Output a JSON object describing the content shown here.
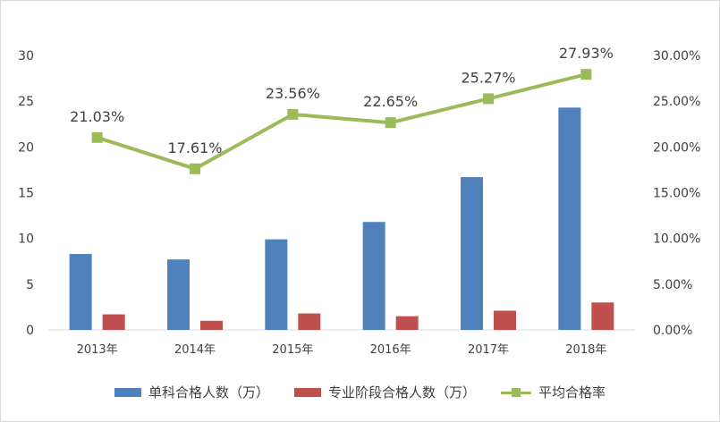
{
  "chart_data": {
    "type": "bar",
    "categories": [
      "2013年",
      "2014年",
      "2015年",
      "2016年",
      "2017年",
      "2018年"
    ],
    "series": [
      {
        "name": "单科合格人数（万）",
        "type": "bar",
        "axis": "left",
        "color": "#4f81bd",
        "values": [
          8.3,
          7.7,
          9.9,
          11.8,
          16.7,
          24.3
        ]
      },
      {
        "name": "专业阶段合格人数（万）",
        "type": "bar",
        "axis": "left",
        "color": "#c0504d",
        "values": [
          1.7,
          1.0,
          1.8,
          1.5,
          2.1,
          3.0
        ]
      },
      {
        "name": "平均合格率",
        "type": "line",
        "axis": "right",
        "color": "#9bbb59",
        "values": [
          21.03,
          17.61,
          23.56,
          22.65,
          25.27,
          27.93
        ],
        "data_labels": [
          "21.03%",
          "17.61%",
          "23.56%",
          "22.65%",
          "25.27%",
          "27.93%"
        ]
      }
    ],
    "left_axis": {
      "ylim": [
        0,
        30
      ],
      "ticks": [
        "0",
        "5",
        "10",
        "15",
        "20",
        "25",
        "30"
      ]
    },
    "right_axis": {
      "ylim": [
        0,
        30
      ],
      "ticks": [
        "0.00%",
        "5.00%",
        "10.00%",
        "15.00%",
        "20.00%",
        "25.00%",
        "30.00%"
      ]
    },
    "grid": false,
    "legend_position": "bottom"
  }
}
